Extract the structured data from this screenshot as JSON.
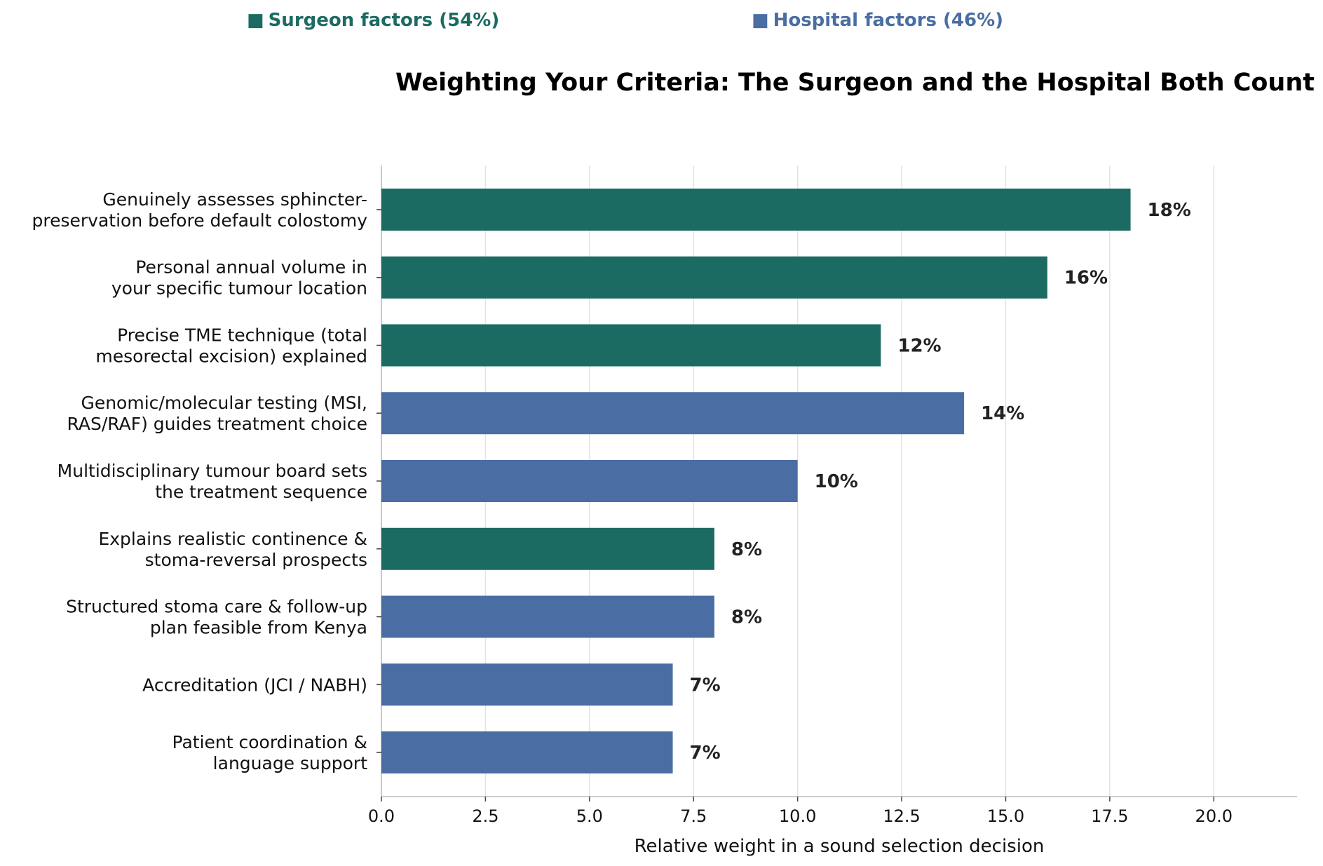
{
  "legend": {
    "surgeon": {
      "icon": "■",
      "label": "Surgeon factors (54%)",
      "color": "#1c6b62"
    },
    "hospital": {
      "icon": "■",
      "label": "Hospital factors (46%)",
      "color": "#4a6ea3"
    }
  },
  "chart_data": {
    "type": "bar",
    "orientation": "horizontal",
    "title": "Weighting Your Criteria: The Surgeon and the Hospital Both Count",
    "xlabel": "Relative weight in a sound selection decision",
    "ylabel": "",
    "xlim": [
      0,
      22
    ],
    "xticks": [
      0.0,
      2.5,
      5.0,
      7.5,
      10.0,
      12.5,
      15.0,
      17.5,
      20.0
    ],
    "xtick_labels": [
      "0.0",
      "2.5",
      "5.0",
      "7.5",
      "10.0",
      "12.5",
      "15.0",
      "17.5",
      "20.0"
    ],
    "grid": "vertical gridlines",
    "legend_position": "top",
    "groups": {
      "surgeon": {
        "name": "Surgeon factors (54%)",
        "color": "#1c6b62"
      },
      "hospital": {
        "name": "Hospital factors (46%)",
        "color": "#4a6ea3"
      }
    },
    "bars": [
      {
        "label": [
          "Genuinely assesses sphincter-",
          "preservation before default colostomy"
        ],
        "value": 18,
        "value_label": "18%",
        "group": "surgeon"
      },
      {
        "label": [
          "Personal annual volume in",
          "your specific tumour location"
        ],
        "value": 16,
        "value_label": "16%",
        "group": "surgeon"
      },
      {
        "label": [
          "Precise TME technique (total",
          "mesorectal excision) explained"
        ],
        "value": 12,
        "value_label": "12%",
        "group": "surgeon"
      },
      {
        "label": [
          "Genomic/molecular testing (MSI,",
          "RAS/RAF) guides treatment choice"
        ],
        "value": 14,
        "value_label": "14%",
        "group": "hospital"
      },
      {
        "label": [
          "Multidisciplinary tumour board sets",
          "the treatment sequence"
        ],
        "value": 10,
        "value_label": "10%",
        "group": "hospital"
      },
      {
        "label": [
          "Explains realistic continence &",
          "stoma-reversal prospects"
        ],
        "value": 8,
        "value_label": "8%",
        "group": "surgeon"
      },
      {
        "label": [
          "Structured stoma care & follow-up",
          "plan feasible from Kenya"
        ],
        "value": 8,
        "value_label": "8%",
        "group": "hospital"
      },
      {
        "label": [
          "Accreditation (JCI / NABH)"
        ],
        "value": 7,
        "value_label": "7%",
        "group": "hospital"
      },
      {
        "label": [
          "Patient coordination &",
          "language support"
        ],
        "value": 7,
        "value_label": "7%",
        "group": "hospital"
      }
    ]
  }
}
